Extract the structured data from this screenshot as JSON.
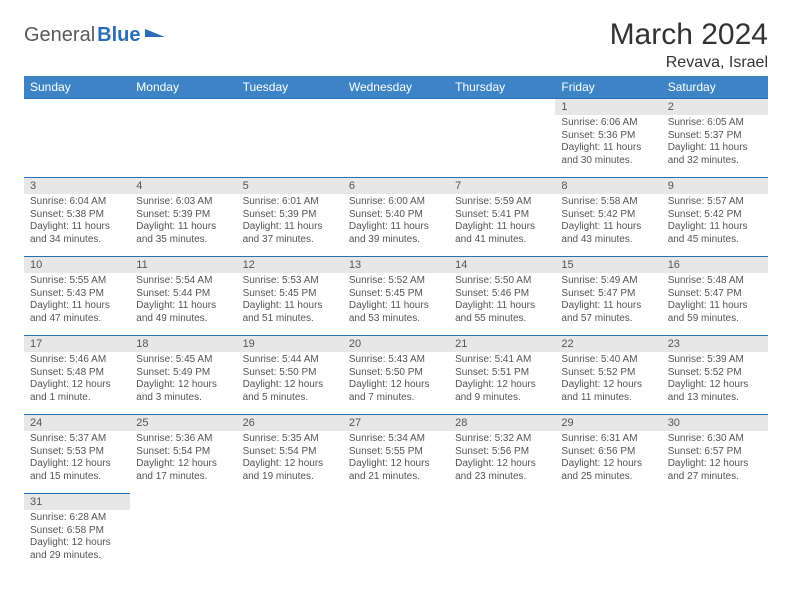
{
  "brand": {
    "part1": "General",
    "part2": "Blue"
  },
  "title": "March 2024",
  "location": "Revava, Israel",
  "colors": {
    "header_bg": "#3d84c6",
    "rule": "#2a6fb5",
    "daynum_bg": "#e7e7e7",
    "text": "#555"
  },
  "weekdays": [
    "Sunday",
    "Monday",
    "Tuesday",
    "Wednesday",
    "Thursday",
    "Friday",
    "Saturday"
  ],
  "weeks": [
    [
      null,
      null,
      null,
      null,
      null,
      {
        "n": "1",
        "sr": "6:06 AM",
        "ss": "5:36 PM",
        "dl": "11 hours and 30 minutes."
      },
      {
        "n": "2",
        "sr": "6:05 AM",
        "ss": "5:37 PM",
        "dl": "11 hours and 32 minutes."
      }
    ],
    [
      {
        "n": "3",
        "sr": "6:04 AM",
        "ss": "5:38 PM",
        "dl": "11 hours and 34 minutes."
      },
      {
        "n": "4",
        "sr": "6:03 AM",
        "ss": "5:39 PM",
        "dl": "11 hours and 35 minutes."
      },
      {
        "n": "5",
        "sr": "6:01 AM",
        "ss": "5:39 PM",
        "dl": "11 hours and 37 minutes."
      },
      {
        "n": "6",
        "sr": "6:00 AM",
        "ss": "5:40 PM",
        "dl": "11 hours and 39 minutes."
      },
      {
        "n": "7",
        "sr": "5:59 AM",
        "ss": "5:41 PM",
        "dl": "11 hours and 41 minutes."
      },
      {
        "n": "8",
        "sr": "5:58 AM",
        "ss": "5:42 PM",
        "dl": "11 hours and 43 minutes."
      },
      {
        "n": "9",
        "sr": "5:57 AM",
        "ss": "5:42 PM",
        "dl": "11 hours and 45 minutes."
      }
    ],
    [
      {
        "n": "10",
        "sr": "5:55 AM",
        "ss": "5:43 PM",
        "dl": "11 hours and 47 minutes."
      },
      {
        "n": "11",
        "sr": "5:54 AM",
        "ss": "5:44 PM",
        "dl": "11 hours and 49 minutes."
      },
      {
        "n": "12",
        "sr": "5:53 AM",
        "ss": "5:45 PM",
        "dl": "11 hours and 51 minutes."
      },
      {
        "n": "13",
        "sr": "5:52 AM",
        "ss": "5:45 PM",
        "dl": "11 hours and 53 minutes."
      },
      {
        "n": "14",
        "sr": "5:50 AM",
        "ss": "5:46 PM",
        "dl": "11 hours and 55 minutes."
      },
      {
        "n": "15",
        "sr": "5:49 AM",
        "ss": "5:47 PM",
        "dl": "11 hours and 57 minutes."
      },
      {
        "n": "16",
        "sr": "5:48 AM",
        "ss": "5:47 PM",
        "dl": "11 hours and 59 minutes."
      }
    ],
    [
      {
        "n": "17",
        "sr": "5:46 AM",
        "ss": "5:48 PM",
        "dl": "12 hours and 1 minute."
      },
      {
        "n": "18",
        "sr": "5:45 AM",
        "ss": "5:49 PM",
        "dl": "12 hours and 3 minutes."
      },
      {
        "n": "19",
        "sr": "5:44 AM",
        "ss": "5:50 PM",
        "dl": "12 hours and 5 minutes."
      },
      {
        "n": "20",
        "sr": "5:43 AM",
        "ss": "5:50 PM",
        "dl": "12 hours and 7 minutes."
      },
      {
        "n": "21",
        "sr": "5:41 AM",
        "ss": "5:51 PM",
        "dl": "12 hours and 9 minutes."
      },
      {
        "n": "22",
        "sr": "5:40 AM",
        "ss": "5:52 PM",
        "dl": "12 hours and 11 minutes."
      },
      {
        "n": "23",
        "sr": "5:39 AM",
        "ss": "5:52 PM",
        "dl": "12 hours and 13 minutes."
      }
    ],
    [
      {
        "n": "24",
        "sr": "5:37 AM",
        "ss": "5:53 PM",
        "dl": "12 hours and 15 minutes."
      },
      {
        "n": "25",
        "sr": "5:36 AM",
        "ss": "5:54 PM",
        "dl": "12 hours and 17 minutes."
      },
      {
        "n": "26",
        "sr": "5:35 AM",
        "ss": "5:54 PM",
        "dl": "12 hours and 19 minutes."
      },
      {
        "n": "27",
        "sr": "5:34 AM",
        "ss": "5:55 PM",
        "dl": "12 hours and 21 minutes."
      },
      {
        "n": "28",
        "sr": "5:32 AM",
        "ss": "5:56 PM",
        "dl": "12 hours and 23 minutes."
      },
      {
        "n": "29",
        "sr": "6:31 AM",
        "ss": "6:56 PM",
        "dl": "12 hours and 25 minutes."
      },
      {
        "n": "30",
        "sr": "6:30 AM",
        "ss": "6:57 PM",
        "dl": "12 hours and 27 minutes."
      }
    ],
    [
      {
        "n": "31",
        "sr": "6:28 AM",
        "ss": "6:58 PM",
        "dl": "12 hours and 29 minutes."
      },
      null,
      null,
      null,
      null,
      null,
      null
    ]
  ],
  "labels": {
    "sunrise": "Sunrise:",
    "sunset": "Sunset:",
    "daylight": "Daylight:"
  }
}
